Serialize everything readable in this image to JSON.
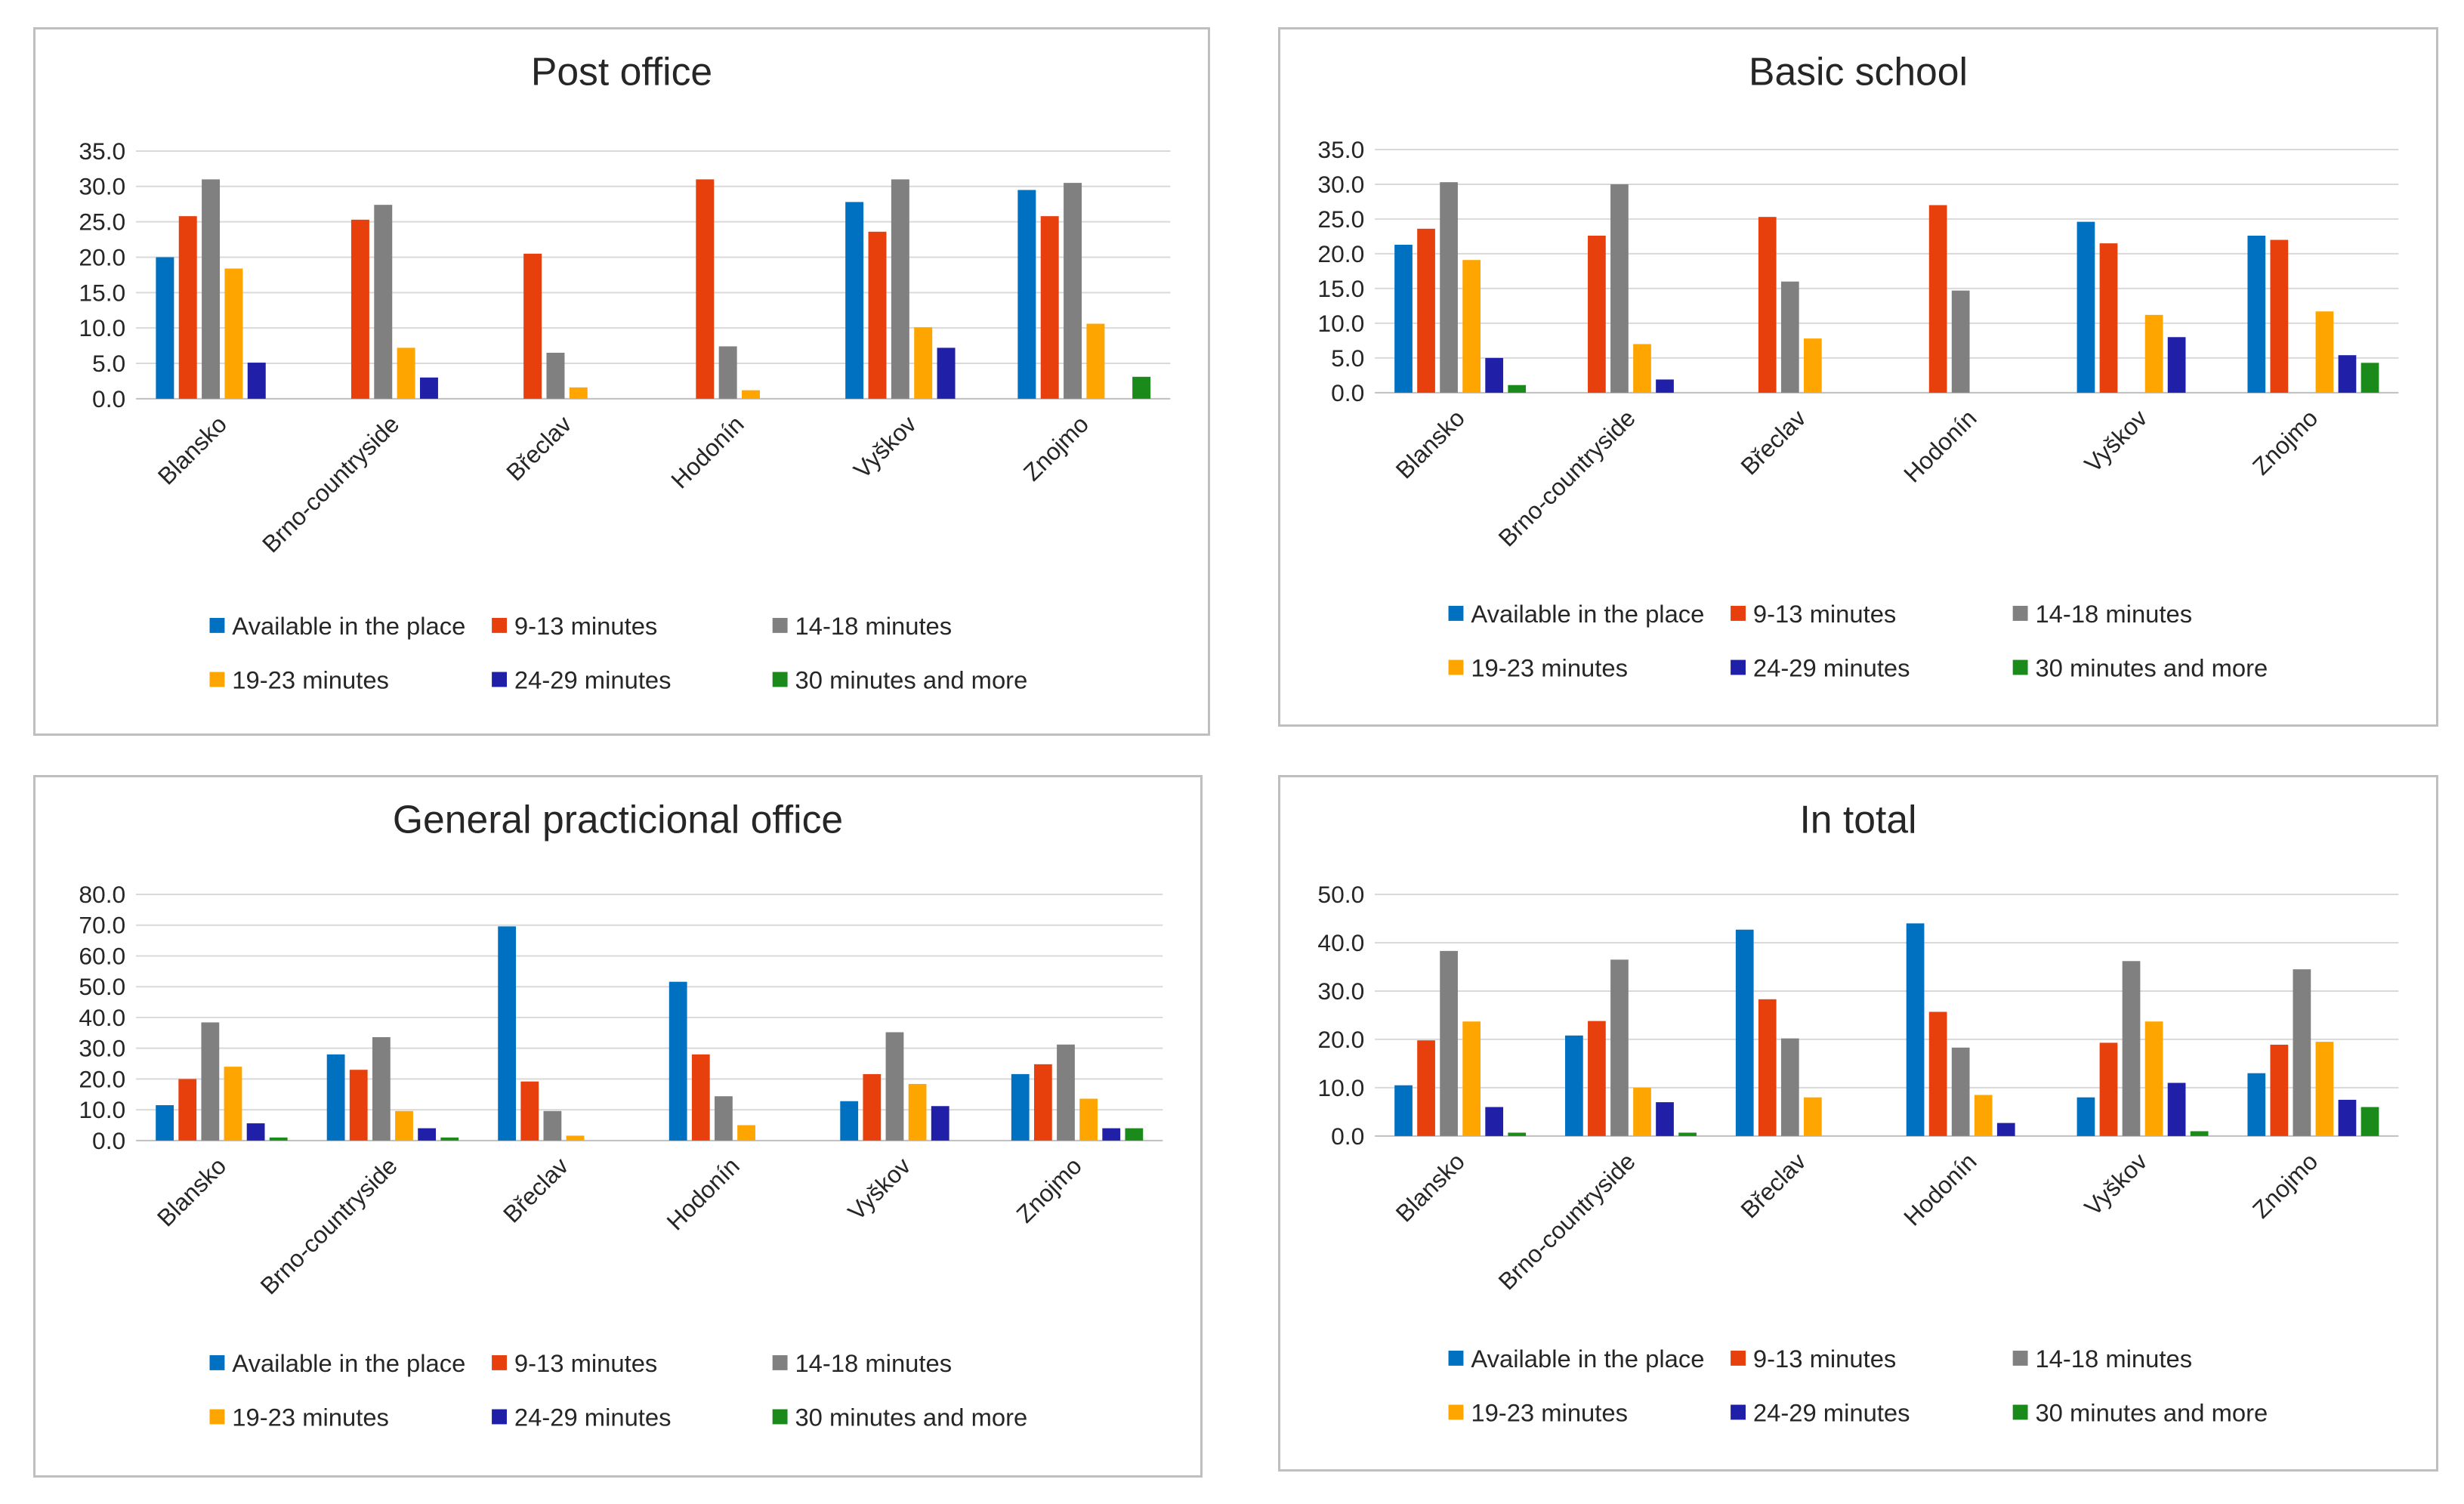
{
  "chart_data": [
    {
      "type": "bar",
      "title": "Post office",
      "categories": [
        "Blansko",
        "Brno-countryside",
        "Břeclav",
        "Hodonín",
        "Vyškov",
        "Znojmo"
      ],
      "yticks": [
        "0.0",
        "5.0",
        "10.0",
        "15.0",
        "20.0",
        "25.0",
        "30.0",
        "35.0"
      ],
      "ylim": [
        0,
        35
      ],
      "grid": true,
      "legend_position": "bottom",
      "series": [
        {
          "name": "Available in the place",
          "color": "#0070C0",
          "values": [
            20.0,
            0,
            0,
            0,
            27.8,
            29.5
          ]
        },
        {
          "name": "9-13 minutes",
          "color": "#E8400C",
          "values": [
            25.8,
            25.3,
            20.5,
            31.0,
            23.6,
            25.8
          ]
        },
        {
          "name": "14-18 minutes",
          "color": "#808080",
          "values": [
            31.0,
            27.4,
            6.5,
            7.4,
            31.0,
            30.5
          ]
        },
        {
          "name": "19-23 minutes",
          "color": "#FFA500",
          "values": [
            18.4,
            7.2,
            1.6,
            1.2,
            10.1,
            10.6
          ]
        },
        {
          "name": "24-29 minutes",
          "color": "#1F1FA8",
          "values": [
            5.1,
            3.0,
            0,
            0,
            7.2,
            0
          ]
        },
        {
          "name": "30 minutes and more",
          "color": "#1A8A1A",
          "values": [
            0,
            0,
            0,
            0,
            0,
            3.1
          ]
        }
      ]
    },
    {
      "type": "bar",
      "title": "Basic school",
      "categories": [
        "Blansko",
        "Brno-countryside",
        "Břeclav",
        "Hodonín",
        "Vyškov",
        "Znojmo"
      ],
      "yticks": [
        "0.0",
        "5.0",
        "10.0",
        "15.0",
        "20.0",
        "25.0",
        "30.0",
        "35.0"
      ],
      "ylim": [
        0,
        35
      ],
      "grid": true,
      "legend_position": "bottom",
      "series": [
        {
          "name": "Available in the place",
          "color": "#0070C0",
          "values": [
            21.3,
            0,
            0,
            0,
            24.6,
            22.6
          ]
        },
        {
          "name": "9-13 minutes",
          "color": "#E8400C",
          "values": [
            23.6,
            22.6,
            25.3,
            27.0,
            21.5,
            22.0
          ]
        },
        {
          "name": "14-18 minutes",
          "color": "#808080",
          "values": [
            30.3,
            30.0,
            16.0,
            14.7,
            0,
            0
          ]
        },
        {
          "name": "19-23 minutes",
          "color": "#FFA500",
          "values": [
            19.1,
            7.0,
            7.8,
            0,
            11.2,
            11.7
          ]
        },
        {
          "name": "24-29 minutes",
          "color": "#1F1FA8",
          "values": [
            5.0,
            1.9,
            0,
            0,
            8.0,
            5.4
          ]
        },
        {
          "name": "30 minutes and more",
          "color": "#1A8A1A",
          "values": [
            1.1,
            0,
            0,
            0,
            0,
            4.3
          ]
        }
      ]
    },
    {
      "type": "bar",
      "title": "General practicional office",
      "categories": [
        "Blansko",
        "Brno-countryside",
        "Břeclav",
        "Hodonín",
        "Vyškov",
        "Znojmo"
      ],
      "yticks": [
        "0.0",
        "10.0",
        "20.0",
        "30.0",
        "40.0",
        "50.0",
        "60.0",
        "70.0",
        "80.0"
      ],
      "ylim": [
        0,
        80
      ],
      "grid": true,
      "legend_position": "bottom",
      "series": [
        {
          "name": "Available in the place",
          "color": "#0070C0",
          "values": [
            11.5,
            28.0,
            69.6,
            51.6,
            12.8,
            21.6
          ]
        },
        {
          "name": "9-13 minutes",
          "color": "#E8400C",
          "values": [
            20.0,
            23.0,
            19.2,
            28.0,
            21.6,
            24.8
          ]
        },
        {
          "name": "14-18 minutes",
          "color": "#808080",
          "values": [
            38.4,
            33.6,
            9.6,
            14.4,
            35.2,
            31.2
          ]
        },
        {
          "name": "19-23 minutes",
          "color": "#FFA500",
          "values": [
            24.0,
            9.6,
            1.6,
            5.0,
            18.4,
            13.6
          ]
        },
        {
          "name": "24-29 minutes",
          "color": "#1F1FA8",
          "values": [
            5.6,
            4.0,
            0,
            0,
            11.2,
            4.0
          ]
        },
        {
          "name": "30 minutes and more",
          "color": "#1A8A1A",
          "values": [
            1.0,
            1.0,
            0,
            0,
            0,
            4.0
          ]
        }
      ]
    },
    {
      "type": "bar",
      "title": "In total",
      "categories": [
        "Blansko",
        "Brno-countryside",
        "Břeclav",
        "Hodonín",
        "Vyškov",
        "Znojmo"
      ],
      "yticks": [
        "0.0",
        "10.0",
        "20.0",
        "30.0",
        "40.0",
        "50.0"
      ],
      "ylim": [
        0,
        50
      ],
      "grid": true,
      "legend_position": "bottom",
      "series": [
        {
          "name": "Available in the place",
          "color": "#0070C0",
          "values": [
            10.5,
            20.8,
            42.7,
            44.0,
            8.0,
            13.0
          ]
        },
        {
          "name": "9-13 minutes",
          "color": "#E8400C",
          "values": [
            19.8,
            23.8,
            28.3,
            25.7,
            19.3,
            18.9
          ]
        },
        {
          "name": "14-18 minutes",
          "color": "#808080",
          "values": [
            38.3,
            36.5,
            20.2,
            18.3,
            36.2,
            34.5
          ]
        },
        {
          "name": "19-23 minutes",
          "color": "#FFA500",
          "values": [
            23.7,
            10.0,
            8.0,
            8.5,
            23.7,
            19.5
          ]
        },
        {
          "name": "24-29 minutes",
          "color": "#1F1FA8",
          "values": [
            6.0,
            7.0,
            0,
            2.7,
            11.0,
            7.5
          ]
        },
        {
          "name": "30 minutes and more",
          "color": "#1A8A1A",
          "values": [
            0.7,
            0.7,
            0,
            0,
            1.0,
            6.0
          ]
        }
      ]
    }
  ]
}
